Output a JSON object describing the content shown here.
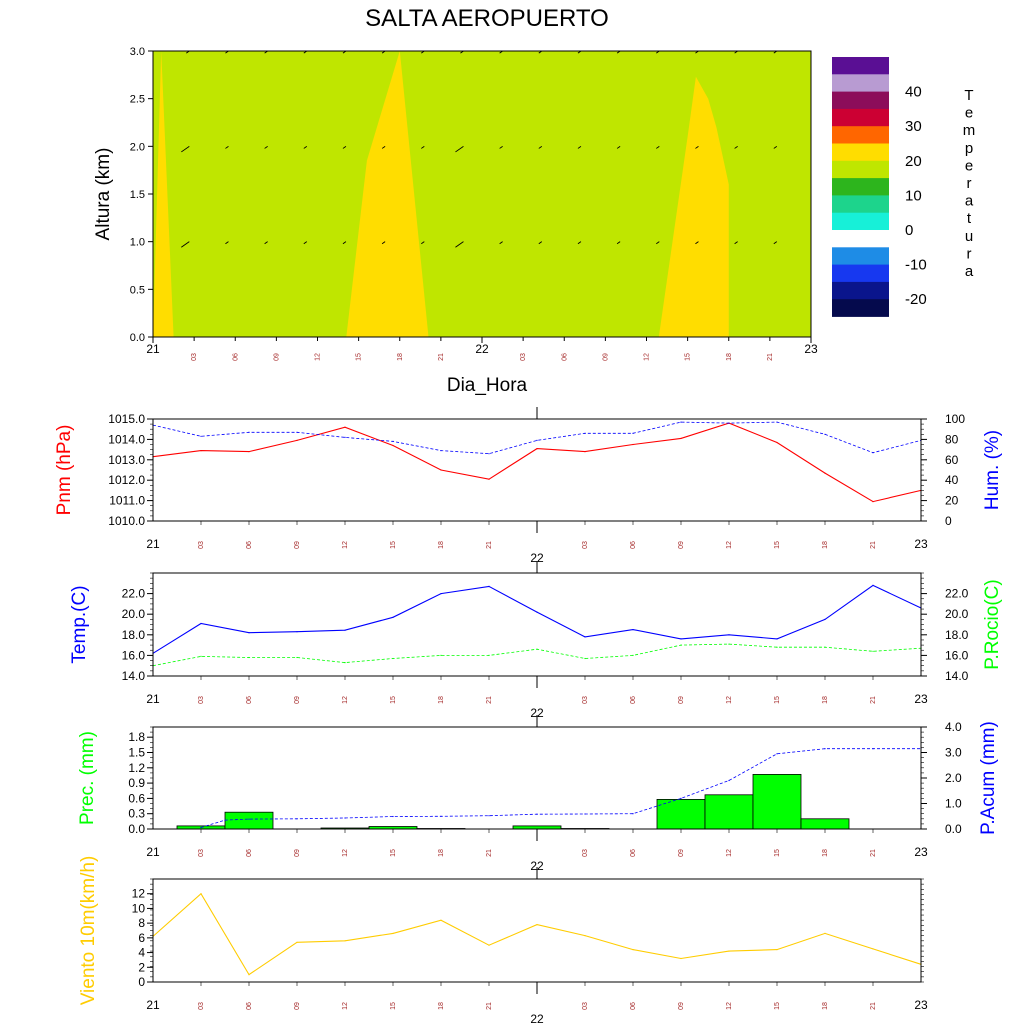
{
  "title": "SALTA AEROPUERTO",
  "xlabel": "Dia_Hora",
  "day_labels": [
    "21",
    "22",
    "23"
  ],
  "hour_labels": [
    "03",
    "06",
    "09",
    "12",
    "15",
    "18",
    "21",
    "03",
    "06",
    "09",
    "12",
    "15",
    "18",
    "21"
  ],
  "colors": {
    "pressure": "#ff0000",
    "humidity": "#0000ff",
    "temperature": "#0000ff",
    "dewpoint": "#00ff00",
    "precip_bar": "#00ff00",
    "precip_accum": "#0000ff",
    "wind": "#ffcc00",
    "hour_label": "#a52a2a"
  },
  "chart_data": [
    {
      "type": "heatmap",
      "title": "SALTA AEROPUERTO",
      "xlabel": "Dia_Hora",
      "ylabel": "Altura (km)",
      "ylim": [
        0,
        3
      ],
      "yticks": [
        "0.0",
        "0.5",
        "1.0",
        "1.5",
        "2.0",
        "2.5",
        "3.0"
      ],
      "xlim": [
        0,
        16
      ],
      "colorbar": {
        "label": "Temperatura",
        "tick_labels": [
          "40",
          "30",
          "20",
          "10",
          "0",
          "-10",
          "-20"
        ],
        "levels": [
          {
            "range": ">45",
            "color": "#5a0f94"
          },
          {
            "range": "40-45",
            "color": "#b89bd2"
          },
          {
            "range": "35-40",
            "color": "#8c0d5a"
          },
          {
            "range": "30-35",
            "color": "#cc0033"
          },
          {
            "range": "25-30",
            "color": "#ff6600"
          },
          {
            "range": "20-25",
            "color": "#ffdd00"
          },
          {
            "range": "15-20",
            "color": "#bfe600"
          },
          {
            "range": "10-15",
            "color": "#2db51d"
          },
          {
            "range": "5-10",
            "color": "#1dd48c"
          },
          {
            "range": "0-5",
            "color": "#17f0d8"
          },
          {
            "range": "-5-0",
            "color": "#ffffff"
          },
          {
            "range": "-10--5",
            "color": "#1e8ce6"
          },
          {
            "range": "-15--10",
            "color": "#1738f0"
          },
          {
            "range": "-20--15",
            "color": "#0a158c"
          },
          {
            "range": "<-20",
            "color": "#050a4d"
          }
        ]
      },
      "background_band": "15-20",
      "warm_regions_band": "20-25",
      "warm_regions": [
        {
          "x": [
            0,
            0.2,
            0.5,
            0
          ],
          "y": [
            0,
            3,
            0,
            0
          ]
        },
        {
          "x": [
            4.7,
            5.2,
            6.0,
            6.7
          ],
          "y": [
            0,
            1.85,
            3,
            0
          ]
        },
        {
          "x": [
            12.3,
            13.0,
            13.2,
            13.5,
            13.7,
            14.0,
            14.0,
            13.8
          ],
          "y": [
            0,
            2.1,
            2.73,
            2.5,
            2.2,
            1.6,
            0,
            0
          ]
        },
        {
          "x": [
            13.0,
            13.8,
            14.0
          ],
          "y": [
            0,
            0,
            0
          ]
        }
      ],
      "wind_vectors": [
        {
          "level": 3.0,
          "dir": "from-ne",
          "speed": "small"
        },
        {
          "level": 2.0,
          "dir": "from-ne",
          "speed": "light"
        },
        {
          "level": 1.0,
          "dir": "from-ne",
          "speed": "light"
        }
      ]
    },
    {
      "type": "line",
      "xlabel": "",
      "ylabel": "Pnm (hPa)",
      "ylabel_right": "Hum. (%)",
      "x": [
        0,
        1,
        2,
        3,
        4,
        5,
        6,
        7,
        8,
        9,
        10,
        11,
        12,
        13,
        14,
        15,
        16
      ],
      "ylim": [
        1010,
        1015
      ],
      "yticks": [
        "1010.0",
        "1011.0",
        "1012.0",
        "1013.0",
        "1014.0",
        "1015.0"
      ],
      "ylim_right": [
        0,
        100
      ],
      "yticks_right": [
        "0",
        "20",
        "40",
        "60",
        "80",
        "100"
      ],
      "series": [
        {
          "name": "Pnm (hPa)",
          "axis": "left",
          "style": "solid",
          "values": [
            1013.15,
            1013.45,
            1013.4,
            1013.95,
            1014.6,
            1013.7,
            1012.5,
            1012.05,
            1013.55,
            1013.4,
            1013.75,
            1014.05,
            1014.8,
            1013.85,
            1012.35,
            1010.95,
            1011.5
          ]
        },
        {
          "name": "Hum. (%)",
          "axis": "right",
          "style": "dashed",
          "values": [
            94,
            83,
            87,
            87,
            82,
            78,
            69,
            66,
            79,
            86,
            86,
            97,
            96,
            97,
            85,
            67,
            79
          ]
        }
      ]
    },
    {
      "type": "line",
      "ylabel": "Temp.(C)",
      "ylabel_right": "P.Rocio(C)",
      "x": [
        0,
        1,
        2,
        3,
        4,
        5,
        6,
        7,
        8,
        9,
        10,
        11,
        12,
        13,
        14,
        15,
        16
      ],
      "ylim": [
        14,
        24
      ],
      "yticks": [
        "14.0",
        "16.0",
        "18.0",
        "20.0",
        "22.0"
      ],
      "ylim_right": [
        14,
        24
      ],
      "yticks_right": [
        "14.0",
        "16.0",
        "18.0",
        "20.0",
        "22.0"
      ],
      "series": [
        {
          "name": "Temp.(C)",
          "axis": "left",
          "style": "solid",
          "values": [
            16.2,
            19.1,
            18.2,
            18.3,
            18.45,
            19.7,
            22.0,
            22.7,
            20.2,
            17.8,
            18.5,
            17.6,
            18.0,
            17.6,
            19.5,
            22.8,
            20.6
          ]
        },
        {
          "name": "P.Rocio(C)",
          "axis": "right",
          "style": "dashed",
          "values": [
            15.0,
            15.9,
            15.8,
            15.8,
            15.3,
            15.7,
            16.0,
            16.0,
            16.6,
            15.7,
            16.0,
            17.0,
            17.1,
            16.8,
            16.8,
            16.4,
            16.7
          ]
        }
      ]
    },
    {
      "type": "bar",
      "ylabel": "Prec. (mm)",
      "ylabel_right": "P.Acum (mm)",
      "x_bar_start": [
        0.5,
        1.5,
        2.5,
        3.5,
        4.5,
        5.5,
        6.5,
        7.5,
        8.5,
        9.5,
        10.5,
        11.5,
        12.5,
        13.5,
        14.5,
        15.5
      ],
      "ylim": [
        0,
        2.0
      ],
      "yticks": [
        "0.0",
        "0.3",
        "0.6",
        "0.9",
        "1.2",
        "1.5",
        "1.8"
      ],
      "ylim_right": [
        0,
        4.0
      ],
      "yticks_right": [
        "0.0",
        "1.0",
        "2.0",
        "3.0",
        "4.0"
      ],
      "series": [
        {
          "name": "Prec. (mm)",
          "axis": "left",
          "style": "bar",
          "values": [
            0.06,
            0.33,
            0.0,
            0.02,
            0.05,
            0.01,
            0.0,
            0.06,
            0.01,
            0.0,
            0.58,
            0.67,
            1.07,
            0.2,
            0.0,
            0.0
          ]
        },
        {
          "name": "P.Acum (mm)",
          "axis": "right",
          "style": "dashed",
          "x": [
            1,
            1.5,
            2,
            3,
            4,
            5,
            6,
            7,
            8,
            9,
            10,
            11,
            12,
            13,
            14,
            15,
            16
          ],
          "values": [
            0.06,
            0.35,
            0.39,
            0.4,
            0.43,
            0.49,
            0.5,
            0.52,
            0.58,
            0.59,
            0.6,
            1.2,
            1.9,
            2.95,
            3.15,
            3.15,
            3.15
          ]
        }
      ]
    },
    {
      "type": "line",
      "ylabel": "Viento 10m(km/h)",
      "x": [
        0,
        1,
        2,
        3,
        4,
        5,
        6,
        7,
        8,
        9,
        10,
        11,
        12,
        13,
        14,
        15,
        16
      ],
      "ylim": [
        0,
        14
      ],
      "yticks": [
        "0",
        "2",
        "4",
        "6",
        "8",
        "10",
        "12"
      ],
      "series": [
        {
          "name": "Viento 10m(km/h)",
          "axis": "left",
          "style": "solid",
          "values": [
            6.2,
            12.0,
            1.0,
            5.4,
            5.6,
            6.6,
            8.4,
            5.0,
            7.8,
            6.3,
            4.4,
            3.2,
            4.2,
            4.4,
            6.6,
            4.5,
            2.4
          ]
        }
      ]
    }
  ]
}
